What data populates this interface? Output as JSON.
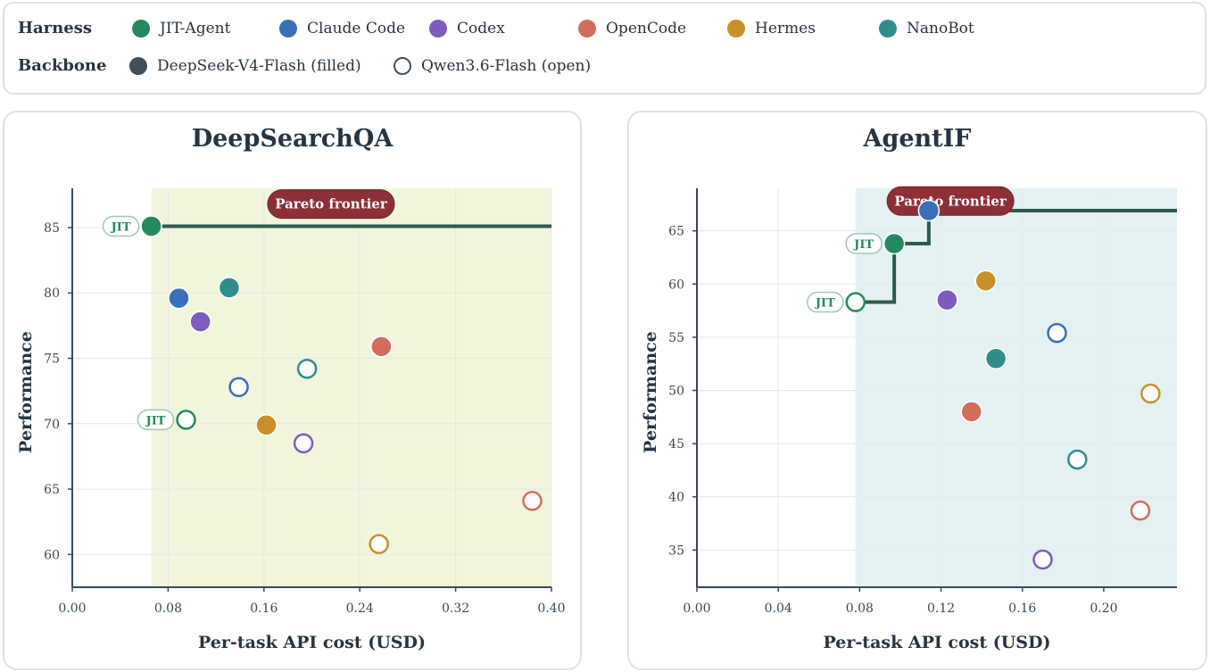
{
  "legend": {
    "harness_title": "Harness",
    "backbone_title": "Backbone",
    "harnesses": [
      {
        "name": "JIT-Agent",
        "color": "#24895f"
      },
      {
        "name": "Claude Code",
        "color": "#3a6fba"
      },
      {
        "name": "Codex",
        "color": "#7c5cbf"
      },
      {
        "name": "OpenCode",
        "color": "#d26d5a"
      },
      {
        "name": "Hermes",
        "color": "#c9902a"
      },
      {
        "name": "NanoBot",
        "color": "#2f8d8c"
      }
    ],
    "backbones": [
      {
        "name": "DeepSeek-V4-Flash (filled)",
        "style": "filled",
        "color": "#3f505c"
      },
      {
        "name": "Qwen3.6-Flash (open)",
        "style": "open",
        "color": "#3f505c"
      }
    ]
  },
  "chart_data": [
    {
      "type": "scatter",
      "title": "DeepSearchQA",
      "xlabel": "Per-task API cost (USD)",
      "ylabel": "Performance",
      "xlim": [
        0.0,
        0.4
      ],
      "ylim": [
        57.5,
        88
      ],
      "xticks": [
        "0.00",
        "0.08",
        "0.16",
        "0.24",
        "0.32",
        "0.40"
      ],
      "xtick_values": [
        0.0,
        0.08,
        0.16,
        0.24,
        0.32,
        0.4
      ],
      "yticks": [
        "60",
        "65",
        "70",
        "75",
        "80",
        "85"
      ],
      "ytick_values": [
        60,
        65,
        70,
        75,
        80,
        85
      ],
      "grid": true,
      "frontier_label": "Pareto frontier",
      "frontier_fill": "#f1f5dc",
      "frontier": [
        [
          0.066,
          85.1
        ],
        [
          0.4,
          85.1
        ]
      ],
      "frontier_region_xmin": 0.066,
      "points": [
        {
          "harness": "JIT-Agent",
          "backbone": "DeepSeek-V4-Flash",
          "x": 0.066,
          "y": 85.1,
          "tag": "JIT"
        },
        {
          "harness": "Claude Code",
          "backbone": "DeepSeek-V4-Flash",
          "x": 0.089,
          "y": 79.6
        },
        {
          "harness": "Codex",
          "backbone": "DeepSeek-V4-Flash",
          "x": 0.107,
          "y": 77.8
        },
        {
          "harness": "NanoBot",
          "backbone": "DeepSeek-V4-Flash",
          "x": 0.131,
          "y": 80.4
        },
        {
          "harness": "OpenCode",
          "backbone": "DeepSeek-V4-Flash",
          "x": 0.258,
          "y": 75.9
        },
        {
          "harness": "Hermes",
          "backbone": "DeepSeek-V4-Flash",
          "x": 0.162,
          "y": 69.9
        },
        {
          "harness": "JIT-Agent",
          "backbone": "Qwen3.6-Flash",
          "x": 0.095,
          "y": 70.3,
          "tag": "JIT"
        },
        {
          "harness": "Claude Code",
          "backbone": "Qwen3.6-Flash",
          "x": 0.139,
          "y": 72.8
        },
        {
          "harness": "NanoBot",
          "backbone": "Qwen3.6-Flash",
          "x": 0.196,
          "y": 74.2
        },
        {
          "harness": "Codex",
          "backbone": "Qwen3.6-Flash",
          "x": 0.193,
          "y": 68.5
        },
        {
          "harness": "OpenCode",
          "backbone": "Qwen3.6-Flash",
          "x": 0.384,
          "y": 64.1
        },
        {
          "harness": "Hermes",
          "backbone": "Qwen3.6-Flash",
          "x": 0.256,
          "y": 60.8
        }
      ]
    },
    {
      "type": "scatter",
      "title": "AgentIF",
      "xlabel": "Per-task API cost (USD)",
      "ylabel": "Performance",
      "xlim": [
        0.0,
        0.236
      ],
      "ylim": [
        31.5,
        69
      ],
      "xticks": [
        "0.00",
        "0.04",
        "0.08",
        "0.12",
        "0.16",
        "0.20"
      ],
      "xtick_values": [
        0.0,
        0.04,
        0.08,
        0.12,
        0.16,
        0.2
      ],
      "yticks": [
        "35",
        "40",
        "45",
        "50",
        "55",
        "60",
        "65"
      ],
      "ytick_values": [
        35,
        40,
        45,
        50,
        55,
        60,
        65
      ],
      "grid": true,
      "frontier_label": "Pareto frontier",
      "frontier_fill": "#e3f1f2",
      "frontier": [
        [
          0.078,
          58.3
        ],
        [
          0.097,
          58.3
        ],
        [
          0.097,
          63.8
        ],
        [
          0.114,
          63.8
        ],
        [
          0.114,
          66.9
        ],
        [
          0.236,
          66.9
        ]
      ],
      "frontier_region_xmin": 0.078,
      "points": [
        {
          "harness": "Claude Code",
          "backbone": "DeepSeek-V4-Flash",
          "x": 0.114,
          "y": 66.9
        },
        {
          "harness": "JIT-Agent",
          "backbone": "DeepSeek-V4-Flash",
          "x": 0.097,
          "y": 63.8,
          "tag": "JIT"
        },
        {
          "harness": "JIT-Agent",
          "backbone": "Qwen3.6-Flash",
          "x": 0.078,
          "y": 58.3,
          "tag": "JIT"
        },
        {
          "harness": "Codex",
          "backbone": "DeepSeek-V4-Flash",
          "x": 0.123,
          "y": 58.5
        },
        {
          "harness": "Hermes",
          "backbone": "DeepSeek-V4-Flash",
          "x": 0.142,
          "y": 60.3
        },
        {
          "harness": "NanoBot",
          "backbone": "DeepSeek-V4-Flash",
          "x": 0.147,
          "y": 53.0
        },
        {
          "harness": "OpenCode",
          "backbone": "DeepSeek-V4-Flash",
          "x": 0.135,
          "y": 48.0
        },
        {
          "harness": "Claude Code",
          "backbone": "Qwen3.6-Flash",
          "x": 0.177,
          "y": 55.4
        },
        {
          "harness": "Hermes",
          "backbone": "Qwen3.6-Flash",
          "x": 0.223,
          "y": 49.7
        },
        {
          "harness": "NanoBot",
          "backbone": "Qwen3.6-Flash",
          "x": 0.187,
          "y": 43.5
        },
        {
          "harness": "OpenCode",
          "backbone": "Qwen3.6-Flash",
          "x": 0.218,
          "y": 38.7
        },
        {
          "harness": "Codex",
          "backbone": "Qwen3.6-Flash",
          "x": 0.17,
          "y": 34.1
        }
      ]
    }
  ]
}
